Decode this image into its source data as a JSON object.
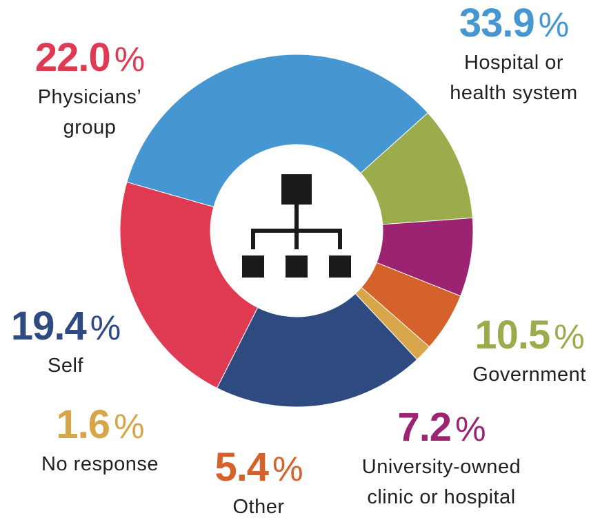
{
  "chart_data": {
    "type": "pie",
    "donut": true,
    "center_icon": "org-chart-icon",
    "legend": "none",
    "title": "",
    "slices": [
      {
        "label": "Hospital or\nhealth system",
        "value": 33.9,
        "value_label": "33.9",
        "color": "#4696d2"
      },
      {
        "label": "Government",
        "value": 10.5,
        "value_label": "10.5",
        "color": "#9aac4c"
      },
      {
        "label": "University-owned\nclinic or hospital",
        "value": 7.2,
        "value_label": "7.2",
        "color": "#9c2372"
      },
      {
        "label": "Other",
        "value": 5.4,
        "value_label": "5.4",
        "color": "#d4622a"
      },
      {
        "label": "No response",
        "value": 1.6,
        "value_label": "1.6",
        "color": "#d8a64a"
      },
      {
        "label": "Self",
        "value": 19.4,
        "value_label": "19.4",
        "color": "#2e4a80"
      },
      {
        "label": "Physicians’\ngroup",
        "value": 22.0,
        "value_label": "22.0",
        "color": "#df3a52"
      }
    ],
    "percent_sign": "%"
  }
}
